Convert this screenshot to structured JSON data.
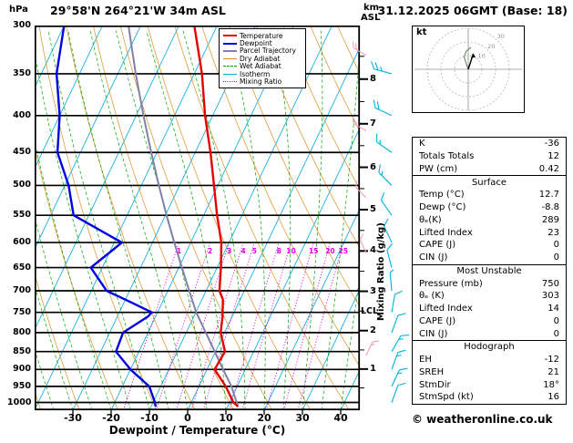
{
  "header": {
    "pressure_unit": "hPa",
    "station": "29°58'N 264°21'W 34m ASL",
    "km_label": "km",
    "asl_label": "ASL",
    "datetime": "31.12.2025 06GMT (Base: 18)"
  },
  "axes": {
    "pressure_ticks": [
      300,
      350,
      400,
      450,
      500,
      550,
      600,
      650,
      700,
      750,
      800,
      850,
      900,
      950,
      1000
    ],
    "temp_ticks": [
      -30,
      -20,
      -10,
      0,
      10,
      20,
      30,
      40
    ],
    "km_ticks": [
      1,
      2,
      3,
      4,
      5,
      6,
      7,
      8
    ],
    "xlabel": "Dewpoint / Temperature (°C)",
    "mixing_ratio_label": "Mixing Ratio (g/kg)",
    "lcl_label": "LCL"
  },
  "legend": {
    "items": [
      {
        "label": "Temperature",
        "color": "#e60000",
        "weight": 2.5,
        "dash": "solid"
      },
      {
        "label": "Dewpoint",
        "color": "#0000e0",
        "weight": 2.5,
        "dash": "solid"
      },
      {
        "label": "Parcel Trajectory",
        "color": "#8080a8",
        "weight": 2.5,
        "dash": "solid"
      },
      {
        "label": "Dry Adiabat",
        "color": "#dd9022",
        "weight": 1,
        "dash": "solid"
      },
      {
        "label": "Wet Adiabat",
        "color": "#00a400",
        "weight": 1,
        "dash": "dashed"
      },
      {
        "label": "Isotherm",
        "color": "#00a8e0",
        "weight": 1,
        "dash": "solid"
      },
      {
        "label": "Mixing Ratio",
        "color": "#dd00dd",
        "weight": 1.5,
        "dash": "dotted"
      }
    ]
  },
  "chart_data": {
    "type": "line",
    "title": "Skew-T log-P sounding",
    "xlabel": "Dewpoint / Temperature (°C)",
    "ylabel": "hPa",
    "x_axis_range_C": [
      -40,
      45
    ],
    "pressure_range_hPa": [
      300,
      1025
    ],
    "mixing_ratio_lines_g_kg": [
      1,
      2,
      3,
      4,
      5,
      8,
      10,
      15,
      20,
      25
    ],
    "lcl_pressure_hPa": 750,
    "pressure_hPa": [
      1013,
      1000,
      950,
      900,
      850,
      800,
      760,
      750,
      720,
      700,
      650,
      600,
      550,
      500,
      450,
      400,
      350,
      300
    ],
    "series": [
      {
        "name": "Temperature",
        "color": "#e60000",
        "values_C": [
          12.7,
          11.0,
          7.0,
          2.0,
          2.5,
          -1.0,
          -2.5,
          -3.0,
          -4.5,
          -6.5,
          -9.0,
          -12.0,
          -16.5,
          -21.0,
          -26.0,
          -32.0,
          -38.0,
          -46.0
        ]
      },
      {
        "name": "Dewpoint",
        "color": "#0000e0",
        "values_C": [
          -8.8,
          -9.5,
          -13.0,
          -20.0,
          -26.0,
          -26.5,
          -22.0,
          -21.5,
          -30.0,
          -36.0,
          -43.0,
          -38.0,
          -54.0,
          -59.0,
          -66.0,
          -70.0,
          -76.0,
          -80.0
        ]
      },
      {
        "name": "Parcel Trajectory",
        "color": "#8080a8",
        "pressure_hPa": [
          1013,
          950,
          900,
          850,
          800,
          750,
          700,
          650,
          600,
          550,
          500,
          450,
          400,
          350,
          300
        ],
        "values_C": [
          12.7,
          8.5,
          4.2,
          -0.2,
          -4.9,
          -9.9,
          -14.4,
          -19.2,
          -24.3,
          -29.7,
          -35.4,
          -41.5,
          -48.1,
          -55.3,
          -63.2
        ]
      }
    ],
    "wind_barbs_kt": [
      {
        "p": 1000,
        "dir": 20,
        "spd": 10
      },
      {
        "p": 950,
        "dir": 25,
        "spd": 15
      },
      {
        "p": 900,
        "dir": 20,
        "spd": 15
      },
      {
        "p": 850,
        "dir": 30,
        "spd": 15
      },
      {
        "p": 800,
        "dir": 20,
        "spd": 10
      },
      {
        "p": 750,
        "dir": 10,
        "spd": 10
      },
      {
        "p": 700,
        "dir": 355,
        "spd": 5
      },
      {
        "p": 650,
        "dir": 345,
        "spd": 10
      },
      {
        "p": 600,
        "dir": 335,
        "spd": 10
      },
      {
        "p": 550,
        "dir": 325,
        "spd": 10
      },
      {
        "p": 500,
        "dir": 315,
        "spd": 15
      },
      {
        "p": 450,
        "dir": 305,
        "spd": 15
      },
      {
        "p": 400,
        "dir": 295,
        "spd": 20
      },
      {
        "p": 350,
        "dir": 285,
        "spd": 25
      }
    ],
    "wind_barbs_inner_kt": [
      {
        "p": 330,
        "dir": 300,
        "spd": 20
      },
      {
        "p": 420,
        "dir": 300,
        "spd": 15
      },
      {
        "p": 520,
        "dir": 315,
        "spd": 10
      },
      {
        "p": 620,
        "dir": 335,
        "spd": 10
      },
      {
        "p": 860,
        "dir": 25,
        "spd": 15
      }
    ],
    "style": {
      "isotherm": "#00a8e0",
      "dry_adiabat": "#dd9022",
      "wet_adiabat": "#00a400",
      "mixing_ratio": "#dd00dd",
      "grid": "#000000",
      "wind_barb": "#00b0dc",
      "wind_barb_inner": "#f2a0be"
    }
  },
  "hodograph": {
    "unit": "kt",
    "ring_labels": [
      "10",
      "20",
      "30"
    ]
  },
  "table": {
    "rows_top": [
      {
        "label": "K",
        "value": "-36"
      },
      {
        "label": "Totals Totals",
        "value": "12"
      },
      {
        "label": "PW (cm)",
        "value": "0.42"
      }
    ],
    "sections": [
      {
        "title": "Surface",
        "rows": [
          {
            "label": "Temp (°C)",
            "value": "12.7"
          },
          {
            "label": "Dewp (°C)",
            "value": "-8.8"
          },
          {
            "label": "θₑ(K)",
            "value": "289"
          },
          {
            "label": "Lifted Index",
            "value": "23"
          },
          {
            "label": "CAPE (J)",
            "value": "0"
          },
          {
            "label": "CIN (J)",
            "value": "0"
          }
        ]
      },
      {
        "title": "Most Unstable",
        "rows": [
          {
            "label": "Pressure (mb)",
            "value": "750"
          },
          {
            "label": "θₑ (K)",
            "value": "303"
          },
          {
            "label": "Lifted Index",
            "value": "14"
          },
          {
            "label": "CAPE (J)",
            "value": "0"
          },
          {
            "label": "CIN (J)",
            "value": "0"
          }
        ]
      },
      {
        "title": "Hodograph",
        "rows": [
          {
            "label": "EH",
            "value": "-12"
          },
          {
            "label": "SREH",
            "value": "21"
          },
          {
            "label": "StmDir",
            "value": "18°"
          },
          {
            "label": "StmSpd (kt)",
            "value": "16"
          }
        ]
      }
    ]
  },
  "footer": {
    "copyright": "© weatheronline.co.uk"
  }
}
